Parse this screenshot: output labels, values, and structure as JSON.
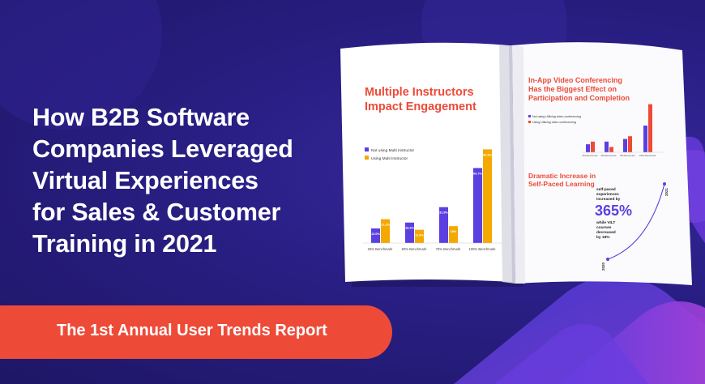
{
  "headline": {
    "lines": [
      "How B2B Software",
      "Companies Leveraged",
      "Virtual Experiences",
      "for Sales & Customer",
      "Training in 2021"
    ]
  },
  "banner": {
    "text": "The 1st Annual User Trends Report"
  },
  "colors": {
    "background": "#2a1f86",
    "banner": "#ee4a38",
    "bar_purple": "#5b3fe0",
    "bar_orange": "#f4a800",
    "accent_red": "#ee4a38"
  },
  "left_page": {
    "title_line1": "Multiple Instructors",
    "title_line2": "Impact Engagement",
    "legend": [
      "Not using Multi Instructor",
      "Using Multi Instructor"
    ],
    "chart_data": {
      "type": "bar",
      "categories": [
        "25% Benchmark",
        "50% Benchmark",
        "75% Benchmark",
        "100% Benchmark"
      ],
      "series": [
        {
          "name": "Not using Multi Instructor",
          "labels": [
            "13.0%",
            "18.2%",
            "31.9%",
            "66.7%"
          ],
          "values": [
            13,
            18.2,
            31.9,
            66.7
          ]
        },
        {
          "name": "Using Multi Instructor",
          "labels": [
            "21.2%",
            "11.8%",
            "15%",
            "83.3%"
          ],
          "values": [
            21.2,
            11.8,
            15,
            83.3
          ]
        }
      ]
    }
  },
  "right_page": {
    "title_line1": "In-App Video Conferencing",
    "title_line2": "Has the Biggest Effect on",
    "title_line3": "Participation and Completion",
    "legend": [
      "Not using Utilizing video conferencing",
      "Using Utilizing video conferencing"
    ],
    "chart_data": {
      "type": "bar",
      "categories": [
        "25% Benchmark",
        "50% Benchmark",
        "75% Benchmark",
        "100% Benchmark"
      ],
      "series": [
        {
          "name": "Not using Utilizing video conferencing",
          "values": [
            3,
            4,
            5,
            10
          ]
        },
        {
          "name": "Using Utilizing video conferencing",
          "values": [
            4,
            2,
            6,
            18
          ]
        }
      ]
    },
    "self_paced": {
      "title_line1": "Dramatic Increase in",
      "title_line2": "Self-Paced Learning",
      "note_top1": "self-paced",
      "note_top2": "experiences",
      "note_top3": "increased by",
      "big_number": "365%",
      "note_bottom1": "while VILT",
      "note_bottom2": "courses",
      "note_bottom3": "decreased",
      "note_bottom4": "by 18%",
      "year_start": "2020",
      "year_end": "2021"
    }
  }
}
